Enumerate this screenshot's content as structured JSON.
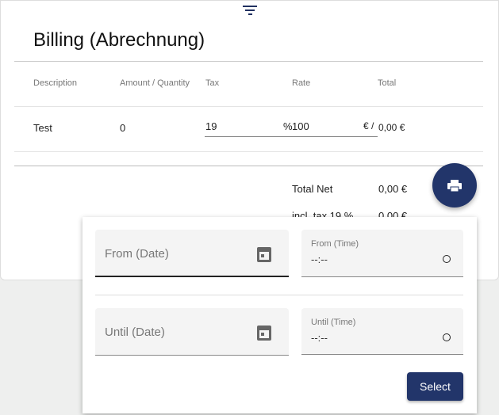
{
  "title": "Billing (Abrechnung)",
  "columns": [
    "Description",
    "Amount / Quantity",
    "Tax",
    "Rate",
    "Total"
  ],
  "row": {
    "description": "Test",
    "amount": "0",
    "tax": "19",
    "tax_suffix": "%",
    "rate": "100",
    "rate_suffix": "€ /",
    "total": "0,00 €"
  },
  "summary": [
    {
      "label": "Total Net",
      "value": "0,00 €"
    },
    {
      "label": "incl. tax 19 %",
      "value": "0,00 €"
    }
  ],
  "filter": {
    "from_date": "From (Date)",
    "from_time_label": "From (Time)",
    "from_time_value": "--:--",
    "until_date": "Until (Date)",
    "until_time_label": "Until (Time)",
    "until_time_value": "--:--",
    "select": "Select"
  },
  "colors": {
    "primary": "#22356a"
  }
}
